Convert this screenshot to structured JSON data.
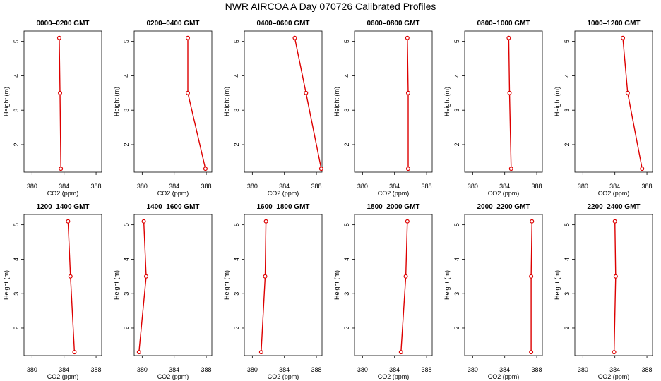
{
  "title": "NWR AIRCOA A  Day 070726  Calibrated Profiles",
  "colors": {
    "series": "#dd0000",
    "axis": "#000000",
    "background": "#ffffff"
  },
  "chart_data": [
    {
      "type": "line",
      "title": "0000–0200 GMT",
      "xlabel": "CO2 (ppm)",
      "ylabel": "Height (m)",
      "xlim": [
        379,
        388.7
      ],
      "ylim": [
        1.2,
        5.3
      ],
      "xticks": [
        380,
        384,
        388
      ],
      "yticks": [
        2,
        3,
        4,
        5
      ],
      "x": [
        383.4,
        383.5,
        383.6
      ],
      "y": [
        5.1,
        3.5,
        1.3
      ]
    },
    {
      "type": "line",
      "title": "0200–0400 GMT",
      "xlabel": "CO2 (ppm)",
      "ylabel": "Height (m)",
      "xlim": [
        379,
        388.7
      ],
      "ylim": [
        1.2,
        5.3
      ],
      "xticks": [
        380,
        384,
        388
      ],
      "yticks": [
        2,
        3,
        4,
        5
      ],
      "x": [
        385.7,
        385.7,
        387.9
      ],
      "y": [
        5.1,
        3.5,
        1.3
      ]
    },
    {
      "type": "line",
      "title": "0400–0600 GMT",
      "xlabel": "CO2 (ppm)",
      "ylabel": "Height (m)",
      "xlim": [
        379,
        388.7
      ],
      "ylim": [
        1.2,
        5.3
      ],
      "xticks": [
        380,
        384,
        388
      ],
      "yticks": [
        2,
        3,
        4,
        5
      ],
      "x": [
        385.3,
        386.7,
        388.6
      ],
      "y": [
        5.1,
        3.5,
        1.3
      ]
    },
    {
      "type": "line",
      "title": "0600–0800 GMT",
      "xlabel": "CO2 (ppm)",
      "ylabel": "Height (m)",
      "xlim": [
        379,
        388.7
      ],
      "ylim": [
        1.2,
        5.3
      ],
      "xticks": [
        380,
        384,
        388
      ],
      "yticks": [
        2,
        3,
        4,
        5
      ],
      "x": [
        385.6,
        385.7,
        385.7
      ],
      "y": [
        5.1,
        3.5,
        1.3
      ]
    },
    {
      "type": "line",
      "title": "0800–1000 GMT",
      "xlabel": "CO2 (ppm)",
      "ylabel": "Height (m)",
      "xlim": [
        379,
        388.7
      ],
      "ylim": [
        1.2,
        5.3
      ],
      "xticks": [
        380,
        384,
        388
      ],
      "yticks": [
        2,
        3,
        4,
        5
      ],
      "x": [
        384.5,
        384.6,
        384.8
      ],
      "y": [
        5.1,
        3.5,
        1.3
      ]
    },
    {
      "type": "line",
      "title": "1000–1200 GMT",
      "xlabel": "CO2 (ppm)",
      "ylabel": "Height (m)",
      "xlim": [
        379,
        388.7
      ],
      "ylim": [
        1.2,
        5.3
      ],
      "xticks": [
        380,
        384,
        388
      ],
      "yticks": [
        2,
        3,
        4,
        5
      ],
      "x": [
        385.0,
        385.6,
        387.4
      ],
      "y": [
        5.1,
        3.5,
        1.3
      ]
    },
    {
      "type": "line",
      "title": "1200–1400 GMT",
      "xlabel": "CO2 (ppm)",
      "ylabel": "Height (m)",
      "xlim": [
        379,
        388.7
      ],
      "ylim": [
        1.2,
        5.3
      ],
      "xticks": [
        380,
        384,
        388
      ],
      "yticks": [
        2,
        3,
        4,
        5
      ],
      "x": [
        384.5,
        384.8,
        385.3
      ],
      "y": [
        5.1,
        3.5,
        1.3
      ]
    },
    {
      "type": "line",
      "title": "1400–1600 GMT",
      "xlabel": "CO2 (ppm)",
      "ylabel": "Height (m)",
      "xlim": [
        379,
        388.7
      ],
      "ylim": [
        1.2,
        5.3
      ],
      "xticks": [
        380,
        384,
        388
      ],
      "yticks": [
        2,
        3,
        4,
        5
      ],
      "x": [
        380.2,
        380.5,
        379.6
      ],
      "y": [
        5.1,
        3.5,
        1.3
      ]
    },
    {
      "type": "line",
      "title": "1600–1800 GMT",
      "xlabel": "CO2 (ppm)",
      "ylabel": "Height (m)",
      "xlim": [
        379,
        388.7
      ],
      "ylim": [
        1.2,
        5.3
      ],
      "xticks": [
        380,
        384,
        388
      ],
      "yticks": [
        2,
        3,
        4,
        5
      ],
      "x": [
        381.7,
        381.6,
        381.1
      ],
      "y": [
        5.1,
        3.5,
        1.3
      ]
    },
    {
      "type": "line",
      "title": "1800–2000 GMT",
      "xlabel": "CO2 (ppm)",
      "ylabel": "Height (m)",
      "xlim": [
        379,
        388.7
      ],
      "ylim": [
        1.2,
        5.3
      ],
      "xticks": [
        380,
        384,
        388
      ],
      "yticks": [
        2,
        3,
        4,
        5
      ],
      "x": [
        385.6,
        385.4,
        384.8
      ],
      "y": [
        5.1,
        3.5,
        1.3
      ]
    },
    {
      "type": "line",
      "title": "2000–2200 GMT",
      "xlabel": "CO2 (ppm)",
      "ylabel": "Height (m)",
      "xlim": [
        379,
        388.7
      ],
      "ylim": [
        1.2,
        5.3
      ],
      "xticks": [
        380,
        384,
        388
      ],
      "yticks": [
        2,
        3,
        4,
        5
      ],
      "x": [
        387.4,
        387.3,
        387.3
      ],
      "y": [
        5.1,
        3.5,
        1.3
      ]
    },
    {
      "type": "line",
      "title": "2200–2400 GMT",
      "xlabel": "CO2 (ppm)",
      "ylabel": "Height (m)",
      "xlim": [
        379,
        388.7
      ],
      "ylim": [
        1.2,
        5.3
      ],
      "xticks": [
        380,
        384,
        388
      ],
      "yticks": [
        2,
        3,
        4,
        5
      ],
      "x": [
        384.0,
        384.1,
        383.9
      ],
      "y": [
        5.1,
        3.5,
        1.3
      ]
    }
  ]
}
